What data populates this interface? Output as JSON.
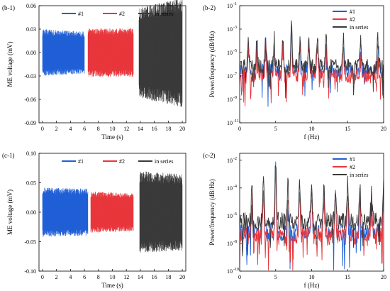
{
  "chart_data": [
    {
      "id": "b1",
      "type": "line",
      "panel_label": "(b-1)",
      "xlabel": "Time (s)",
      "ylabel": "ME voltage (mV)",
      "xlim": [
        -0.5,
        20.5
      ],
      "ylim": [
        -0.09,
        0.06
      ],
      "xticks": [
        0,
        2,
        4,
        6,
        8,
        10,
        12,
        14,
        16,
        18,
        20
      ],
      "xtick_labels": [
        "0",
        "2",
        "4",
        "6",
        "8",
        "10",
        "12",
        "14",
        "16",
        "18",
        "20"
      ],
      "yticks": [
        -0.09,
        -0.06,
        -0.03,
        0.0,
        0.03,
        0.06
      ],
      "ytick_labels": [
        "-0.09",
        "-0.06",
        "-0.03",
        "0.00",
        "0.03",
        "0.06"
      ],
      "legend_position": "top",
      "series": [
        {
          "name": "#1",
          "color": "#1f5fd6",
          "segment": [
            0,
            6
          ],
          "amplitude": [
            0.03,
            0.027
          ]
        },
        {
          "name": "#2",
          "color": "#e8363b",
          "segment": [
            6.5,
            13
          ],
          "amplitude": [
            0.031,
            0.031
          ]
        },
        {
          "name": "in series",
          "color": "#3a3a3a",
          "segment": [
            13.8,
            20
          ],
          "amplitude": [
            0.058,
            0.07
          ]
        }
      ]
    },
    {
      "id": "b2",
      "type": "line",
      "panel_label": "(b-2)",
      "xlabel": "f (Hz)",
      "ylabel": "Power/frequency (dB/Hz)",
      "xlim": [
        0,
        20
      ],
      "yscale": "log",
      "ylim_exponent": [
        -11,
        -1
      ],
      "xticks": [
        0,
        5,
        10,
        15,
        20
      ],
      "xtick_labels": [
        "0",
        "5",
        "10",
        "15",
        "20"
      ],
      "yticks_exponent": [
        -11,
        -9,
        -7,
        -5,
        -3,
        -1
      ],
      "ytick_base": "10",
      "legend_position": "top-right",
      "peaks_hz": [
        1.2,
        2.4,
        3.6,
        4.8,
        6.0,
        7.2,
        8.4,
        9.6,
        10.8,
        12.0,
        14.4,
        16.8,
        19.2
      ],
      "main_peak_hz": 7.2,
      "series": [
        {
          "name": "#1",
          "color": "#1f5fd6",
          "baseline_exp": -6.6,
          "peak_exp": -2.6
        },
        {
          "name": "#2",
          "color": "#e8363b",
          "baseline_exp": -7.0,
          "peak_exp": -3.0
        },
        {
          "name": "in series",
          "color": "#3a3a3a",
          "baseline_exp": -6.2,
          "peak_exp": -2.2
        }
      ]
    },
    {
      "id": "c1",
      "type": "line",
      "panel_label": "(c-1)",
      "xlabel": "Time (s)",
      "ylabel": "ME voltage (mV)",
      "xlim": [
        -0.5,
        20.5
      ],
      "ylim": [
        -0.1,
        0.1
      ],
      "xticks": [
        0,
        2,
        4,
        6,
        8,
        10,
        12,
        14,
        16,
        18,
        20
      ],
      "xtick_labels": [
        "0",
        "2",
        "4",
        "6",
        "8",
        "10",
        "12",
        "14",
        "16",
        "18",
        "20"
      ],
      "yticks": [
        -0.1,
        -0.05,
        0.0,
        0.05,
        0.1
      ],
      "ytick_labels": [
        "-0.10",
        "-0.05",
        "0.00",
        "0.05",
        "0.10"
      ],
      "legend_position": "top",
      "series": [
        {
          "name": "#1",
          "color": "#1f5fd6",
          "segment": [
            0,
            6.5
          ],
          "amplitude": [
            0.042,
            0.04
          ]
        },
        {
          "name": "#2",
          "color": "#e8363b",
          "segment": [
            6.9,
            13
          ],
          "amplitude": [
            0.035,
            0.032
          ]
        },
        {
          "name": "in series",
          "color": "#3a3a3a",
          "segment": [
            13.9,
            20
          ],
          "amplitude": [
            0.07,
            0.065
          ]
        }
      ]
    },
    {
      "id": "c2",
      "type": "line",
      "panel_label": "(c-2)",
      "xlabel": "f (Hz)",
      "ylabel": "Power/frequency (dB/Hz)",
      "xlim": [
        0,
        20
      ],
      "yscale": "log",
      "ylim_exponent": [
        -10,
        -1.5
      ],
      "xticks": [
        0,
        5,
        10,
        15,
        20
      ],
      "xtick_labels": [
        "0",
        "5",
        "10",
        "15",
        "20"
      ],
      "yticks_exponent": [
        -10,
        -8,
        -6,
        -4,
        -2
      ],
      "ytick_base": "10",
      "legend_position": "top-right",
      "peaks_hz": [
        1.7,
        3.3,
        5.0,
        6.7,
        8.3,
        10.0,
        11.7,
        13.3,
        15.0,
        16.7,
        18.3,
        20.0
      ],
      "main_peak_hz": 5.0,
      "series": [
        {
          "name": "#1",
          "color": "#1f5fd6",
          "baseline_exp": -7.2,
          "peak_exp": -2.4
        },
        {
          "name": "#2",
          "color": "#e8363b",
          "baseline_exp": -7.5,
          "peak_exp": -2.7
        },
        {
          "name": "in series",
          "color": "#3a3a3a",
          "baseline_exp": -6.4,
          "peak_exp": -2.0
        }
      ]
    }
  ]
}
